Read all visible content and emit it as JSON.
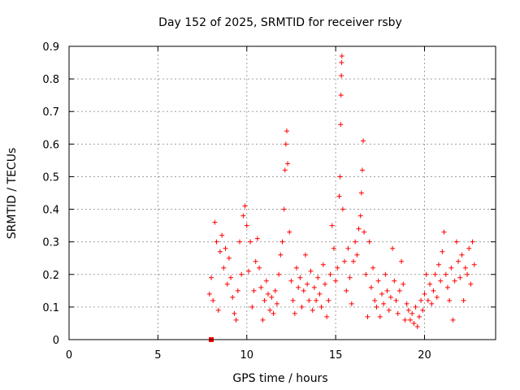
{
  "chart_data": {
    "type": "scatter",
    "title": "Day 152 of 2025, SRMTID for receiver rsby",
    "xlabel": "GPS time / hours",
    "ylabel": "SRMTID / TECUs",
    "xlim": [
      0,
      24
    ],
    "ylim": [
      0,
      0.9
    ],
    "xticks": [
      0,
      5,
      10,
      15,
      20
    ],
    "yticks": [
      0,
      0.1,
      0.2,
      0.3,
      0.4,
      0.5,
      0.6,
      0.7,
      0.8,
      0.9
    ],
    "xtick_labels": [
      "0",
      "5",
      "10",
      "15",
      "20"
    ],
    "ytick_labels": [
      "0",
      "0.1",
      "0.2",
      "0.3",
      "0.4",
      "0.5",
      "0.6",
      "0.7",
      "0.8",
      "0.9"
    ],
    "grid": true,
    "marker": "plus",
    "color": "#ff0000",
    "zero_value_marker": {
      "x": 8.0,
      "y": 0.0
    },
    "series": [
      {
        "name": "SRMTID",
        "points": [
          [
            7.9,
            0.14
          ],
          [
            8.0,
            0.19
          ],
          [
            8.1,
            0.12
          ],
          [
            8.2,
            0.36
          ],
          [
            8.3,
            0.3
          ],
          [
            8.4,
            0.09
          ],
          [
            8.5,
            0.27
          ],
          [
            8.6,
            0.32
          ],
          [
            8.7,
            0.22
          ],
          [
            8.8,
            0.28
          ],
          [
            8.9,
            0.17
          ],
          [
            9.0,
            0.25
          ],
          [
            9.1,
            0.19
          ],
          [
            9.2,
            0.13
          ],
          [
            9.3,
            0.08
          ],
          [
            9.4,
            0.06
          ],
          [
            9.5,
            0.15
          ],
          [
            9.6,
            0.3
          ],
          [
            9.7,
            0.2
          ],
          [
            9.8,
            0.38
          ],
          [
            9.9,
            0.41
          ],
          [
            10.0,
            0.35
          ],
          [
            10.1,
            0.21
          ],
          [
            10.2,
            0.3
          ],
          [
            10.3,
            0.1
          ],
          [
            10.4,
            0.15
          ],
          [
            10.5,
            0.24
          ],
          [
            10.6,
            0.31
          ],
          [
            10.7,
            0.22
          ],
          [
            10.8,
            0.16
          ],
          [
            10.9,
            0.06
          ],
          [
            11.0,
            0.12
          ],
          [
            11.1,
            0.18
          ],
          [
            11.2,
            0.14
          ],
          [
            11.3,
            0.09
          ],
          [
            11.4,
            0.13
          ],
          [
            11.5,
            0.08
          ],
          [
            11.6,
            0.15
          ],
          [
            11.7,
            0.11
          ],
          [
            11.8,
            0.2
          ],
          [
            11.9,
            0.26
          ],
          [
            12.0,
            0.3
          ],
          [
            12.1,
            0.4
          ],
          [
            12.15,
            0.52
          ],
          [
            12.2,
            0.6
          ],
          [
            12.25,
            0.64
          ],
          [
            12.3,
            0.54
          ],
          [
            12.4,
            0.33
          ],
          [
            12.5,
            0.18
          ],
          [
            12.6,
            0.12
          ],
          [
            12.7,
            0.08
          ],
          [
            12.8,
            0.22
          ],
          [
            12.9,
            0.16
          ],
          [
            13.0,
            0.19
          ],
          [
            13.1,
            0.1
          ],
          [
            13.2,
            0.15
          ],
          [
            13.3,
            0.26
          ],
          [
            13.4,
            0.17
          ],
          [
            13.5,
            0.12
          ],
          [
            13.6,
            0.21
          ],
          [
            13.7,
            0.09
          ],
          [
            13.8,
            0.16
          ],
          [
            13.9,
            0.12
          ],
          [
            14.0,
            0.19
          ],
          [
            14.1,
            0.14
          ],
          [
            14.2,
            0.1
          ],
          [
            14.3,
            0.23
          ],
          [
            14.4,
            0.17
          ],
          [
            14.5,
            0.07
          ],
          [
            14.6,
            0.12
          ],
          [
            14.7,
            0.2
          ],
          [
            14.8,
            0.35
          ],
          [
            14.9,
            0.28
          ],
          [
            15.0,
            0.18
          ],
          [
            15.1,
            0.22
          ],
          [
            15.2,
            0.44
          ],
          [
            15.25,
            0.5
          ],
          [
            15.28,
            0.66
          ],
          [
            15.3,
            0.75
          ],
          [
            15.32,
            0.81
          ],
          [
            15.33,
            0.85
          ],
          [
            15.35,
            0.87
          ],
          [
            15.4,
            0.4
          ],
          [
            15.5,
            0.24
          ],
          [
            15.6,
            0.15
          ],
          [
            15.7,
            0.28
          ],
          [
            15.8,
            0.19
          ],
          [
            15.9,
            0.11
          ],
          [
            16.0,
            0.24
          ],
          [
            16.1,
            0.3
          ],
          [
            16.2,
            0.26
          ],
          [
            16.3,
            0.34
          ],
          [
            16.4,
            0.38
          ],
          [
            16.45,
            0.45
          ],
          [
            16.5,
            0.52
          ],
          [
            16.55,
            0.61
          ],
          [
            16.6,
            0.33
          ],
          [
            16.7,
            0.2
          ],
          [
            16.8,
            0.07
          ],
          [
            16.9,
            0.3
          ],
          [
            17.0,
            0.16
          ],
          [
            17.1,
            0.22
          ],
          [
            17.2,
            0.12
          ],
          [
            17.3,
            0.1
          ],
          [
            17.4,
            0.18
          ],
          [
            17.5,
            0.07
          ],
          [
            17.6,
            0.14
          ],
          [
            17.7,
            0.11
          ],
          [
            17.8,
            0.2
          ],
          [
            17.9,
            0.15
          ],
          [
            18.0,
            0.09
          ],
          [
            18.1,
            0.13
          ],
          [
            18.2,
            0.28
          ],
          [
            18.3,
            0.18
          ],
          [
            18.4,
            0.12
          ],
          [
            18.5,
            0.08
          ],
          [
            18.6,
            0.15
          ],
          [
            18.7,
            0.24
          ],
          [
            18.8,
            0.17
          ],
          [
            18.9,
            0.06
          ],
          [
            19.0,
            0.11
          ],
          [
            19.1,
            0.09
          ],
          [
            19.2,
            0.06
          ],
          [
            19.3,
            0.08
          ],
          [
            19.4,
            0.05
          ],
          [
            19.5,
            0.1
          ],
          [
            19.6,
            0.04
          ],
          [
            19.7,
            0.07
          ],
          [
            19.8,
            0.12
          ],
          [
            19.9,
            0.09
          ],
          [
            20.0,
            0.14
          ],
          [
            20.1,
            0.2
          ],
          [
            20.2,
            0.12
          ],
          [
            20.3,
            0.17
          ],
          [
            20.4,
            0.11
          ],
          [
            20.5,
            0.15
          ],
          [
            20.6,
            0.2
          ],
          [
            20.7,
            0.13
          ],
          [
            20.8,
            0.23
          ],
          [
            20.9,
            0.18
          ],
          [
            21.0,
            0.27
          ],
          [
            21.1,
            0.33
          ],
          [
            21.2,
            0.2
          ],
          [
            21.3,
            0.16
          ],
          [
            21.4,
            0.12
          ],
          [
            21.5,
            0.22
          ],
          [
            21.6,
            0.06
          ],
          [
            21.7,
            0.18
          ],
          [
            21.8,
            0.3
          ],
          [
            21.9,
            0.24
          ],
          [
            22.0,
            0.19
          ],
          [
            22.1,
            0.26
          ],
          [
            22.2,
            0.12
          ],
          [
            22.3,
            0.22
          ],
          [
            22.4,
            0.2
          ],
          [
            22.5,
            0.28
          ],
          [
            22.6,
            0.17
          ],
          [
            22.7,
            0.3
          ],
          [
            22.8,
            0.23
          ]
        ]
      }
    ]
  }
}
